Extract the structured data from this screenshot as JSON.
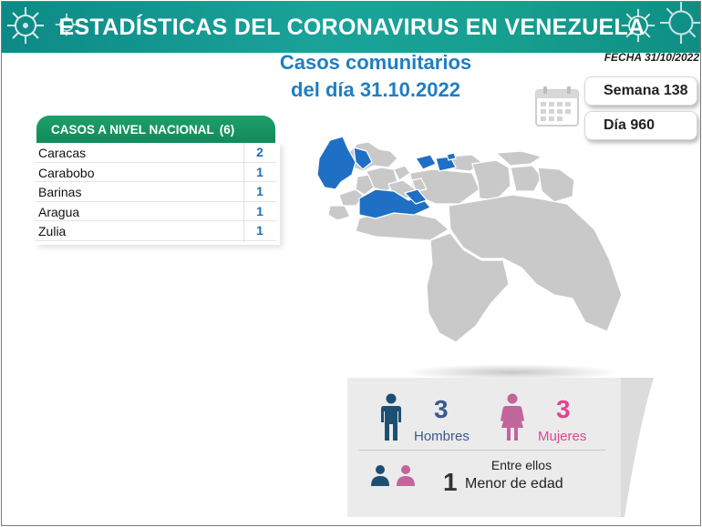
{
  "header": {
    "title": "ESTADÍSTICAS DEL CORONAVIRUS EN VENEZUELA"
  },
  "title": {
    "line1": "Casos comunitarios",
    "line2": "del día 31.10.2022"
  },
  "fecha": "FECHA 31/10/2022",
  "semana": "Semana 138",
  "dia": "Día 960",
  "table": {
    "header": "CASOS A NIVEL NACIONAL",
    "total": "(6)",
    "rows": [
      {
        "name": "Caracas",
        "value": "2"
      },
      {
        "name": "Carabobo",
        "value": "1"
      },
      {
        "name": "Barinas",
        "value": "1"
      },
      {
        "name": "Aragua",
        "value": "1"
      },
      {
        "name": "Zulia",
        "value": "1"
      }
    ]
  },
  "demographics": {
    "hombres_count": "3",
    "hombres_label": "Hombres",
    "mujeres_count": "3",
    "mujeres_label": "Mujeres",
    "entre_ellos": "Entre ellos",
    "menor_count": "1",
    "menor_label": "Menor de edad"
  },
  "colors": {
    "header_teal": "#17a090",
    "title_blue": "#1f7ec4",
    "table_green": "#138a5a",
    "value_blue": "#1f6fb5",
    "highlight_state": "#1f6fc4",
    "base_state": "#c9c9c9",
    "male": "#1d4f73",
    "female": "#c2659a"
  },
  "icons": [
    "virus-icon",
    "calendar-icon",
    "male-icon",
    "female-icon",
    "child-pair-icon"
  ]
}
